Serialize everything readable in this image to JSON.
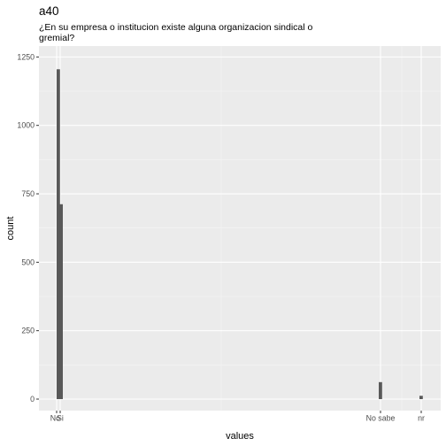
{
  "chart_data": {
    "type": "bar",
    "title": "a40",
    "subtitle_lines": [
      "¿En su empresa o institucion existe alguna organizacion sindical o",
      "gremial?"
    ],
    "xlabel": "values",
    "ylabel": "count",
    "ylim": [
      0,
      1290
    ],
    "yticks": [
      0,
      250,
      500,
      750,
      1000,
      1250
    ],
    "grid": true,
    "panel_color": "#ebebeb",
    "bar_color": "#595959",
    "categories": [
      "No",
      "Si",
      "No sabe",
      "nr"
    ],
    "values": [
      1205,
      712,
      62,
      12
    ]
  }
}
